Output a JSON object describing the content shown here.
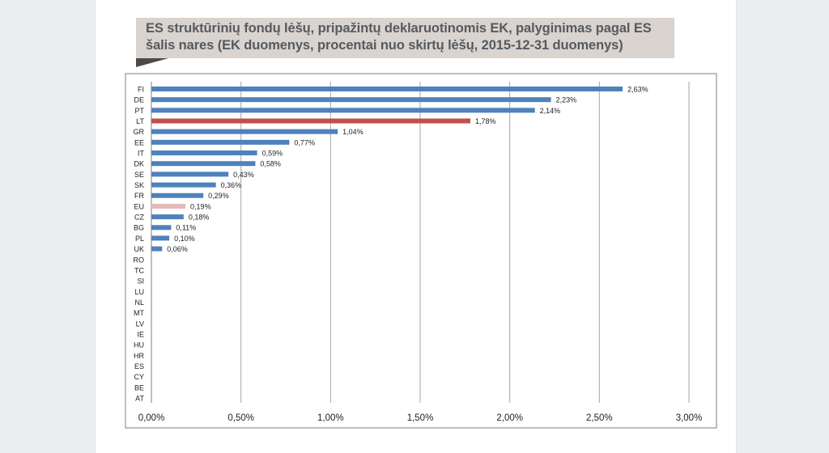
{
  "title": "ES struktūrinių  fondų lėšų, pripažintų deklaruotinomis EK, palyginimas pagal ES šalis nares (EK duomenys, procentai nuo skirtų lėšų, 2015-12-31 duomenys)",
  "colors": {
    "bar_default": "#4f81bd",
    "bar_lt": "#c0504d",
    "bar_eu": "#e6b9b8",
    "grid": "#a6a6a6"
  },
  "chart_data": {
    "type": "bar",
    "orientation": "horizontal",
    "title": "ES struktūrinių  fondų lėšų, pripažintų deklaruotinomis EK, palyginimas pagal ES šalis nares (EK duomenys, procentai nuo skirtų lėšų, 2015-12-31 duomenys)",
    "xlabel": "",
    "ylabel": "",
    "xlim": [
      0,
      3
    ],
    "grid": "vertical",
    "legend": "none",
    "ticks": [
      {
        "value": 0,
        "label": "0,00%"
      },
      {
        "value": 0.5,
        "label": "0,50%"
      },
      {
        "value": 1.0,
        "label": "1,00%"
      },
      {
        "value": 1.5,
        "label": "1,50%"
      },
      {
        "value": 2.0,
        "label": "2,00%"
      },
      {
        "value": 2.5,
        "label": "2,50%"
      },
      {
        "value": 3.0,
        "label": "3,00%"
      }
    ],
    "categories": [
      "FI",
      "DE",
      "PT",
      "LT",
      "GR",
      "EE",
      "IT",
      "DK",
      "SE",
      "SK",
      "FR",
      "EU",
      "CZ",
      "BG",
      "PL",
      "UK",
      "RO",
      "TC",
      "SI",
      "LU",
      "NL",
      "MT",
      "LV",
      "IE",
      "HU",
      "HR",
      "ES",
      "CY",
      "BE",
      "AT"
    ],
    "values": [
      2.63,
      2.23,
      2.14,
      1.78,
      1.04,
      0.77,
      0.59,
      0.58,
      0.43,
      0.36,
      0.29,
      0.19,
      0.18,
      0.11,
      0.1,
      0.06,
      null,
      null,
      null,
      null,
      null,
      null,
      null,
      null,
      null,
      null,
      null,
      null,
      null,
      null
    ],
    "data_labels": [
      "2,63%",
      "2,23%",
      "2,14%",
      "1,78%",
      "1,04%",
      "0,77%",
      "0,59%",
      "0,58%",
      "0,43%",
      "0,36%",
      "0,29%",
      "0,19%",
      "0,18%",
      "0,11%",
      "0,10%",
      "0,06%",
      "",
      "",
      "",
      "",
      "",
      "",
      "",
      "",
      "",
      "",
      "",
      "",
      "",
      ""
    ],
    "highlight": {
      "LT": "bar_lt",
      "EU": "bar_eu"
    }
  }
}
